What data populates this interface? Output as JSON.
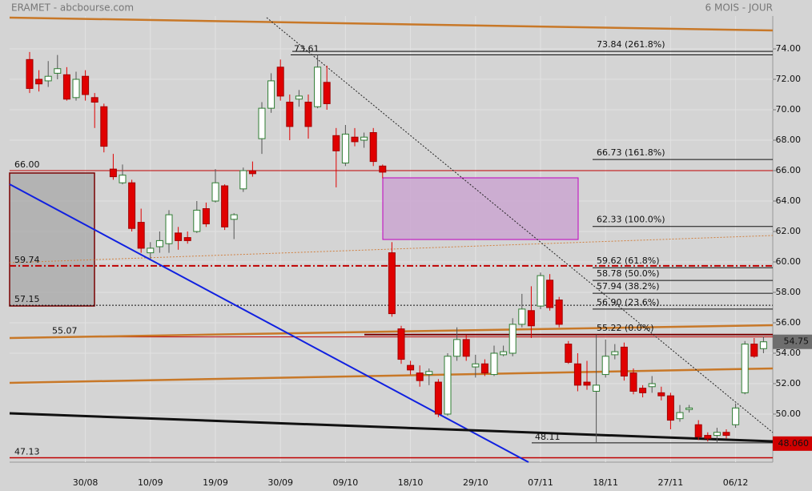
{
  "chart_data": {
    "type": "candlestick",
    "title": "ERAMET - abcbourse.com",
    "subtitle": "6 MOIS - JOUR",
    "categories": [
      null,
      null,
      null,
      null,
      null,
      null,
      "30/08",
      null,
      null,
      null,
      null,
      null,
      null,
      "10/09",
      null,
      null,
      null,
      null,
      null,
      null,
      "19/09",
      null,
      null,
      null,
      null,
      null,
      null,
      "30/09",
      null,
      null,
      null,
      null,
      null,
      null,
      "09/10",
      null,
      null,
      null,
      null,
      null,
      null,
      "18/10",
      null,
      null,
      null,
      null,
      null,
      null,
      "29/10",
      null,
      null,
      null,
      null,
      null,
      null,
      "07/11",
      null,
      null,
      null,
      null,
      null,
      null,
      "18/11",
      null,
      null,
      null,
      null,
      null,
      null,
      "27/11",
      null,
      null,
      null,
      null,
      null,
      null,
      "06/12",
      null,
      null,
      null
    ],
    "open": [
      73.3,
      72.0,
      71.9,
      72.4,
      72.3,
      70.8,
      72.2,
      70.8,
      70.2,
      66.1,
      65.2,
      65.2,
      62.6,
      60.6,
      61.0,
      61.2,
      61.9,
      61.6,
      62.0,
      63.5,
      64.0,
      65.0,
      62.8,
      64.8,
      66.0,
      68.1,
      70.1,
      72.8,
      70.5,
      70.7,
      70.5,
      70.2,
      71.8,
      68.3,
      66.5,
      68.2,
      68.0,
      68.5,
      66.3,
      60.6,
      55.6,
      53.2,
      52.7,
      52.6,
      52.1,
      50.0,
      53.8,
      54.9,
      53.1,
      53.3,
      52.6,
      53.9,
      54.0,
      55.9,
      56.8,
      57.1,
      58.8,
      57.5,
      54.6,
      53.3,
      52.1,
      51.5,
      52.6,
      53.9,
      54.4,
      52.7,
      51.7,
      51.8,
      51.4,
      51.2,
      49.7,
      50.3,
      49.3,
      48.6,
      48.6,
      48.8,
      49.3,
      51.4,
      54.6,
      54.3
    ],
    "high": [
      73.8,
      72.6,
      73.2,
      73.6,
      72.8,
      72.5,
      72.6,
      71.1,
      70.4,
      67.1,
      66.4,
      65.4,
      63.5,
      61.3,
      62.0,
      63.4,
      62.3,
      62.0,
      64.0,
      63.9,
      66.1,
      65.1,
      63.2,
      66.2,
      66.6,
      70.5,
      72.4,
      73.3,
      71.0,
      71.3,
      71.0,
      73.6,
      72.9,
      68.8,
      69.0,
      68.8,
      68.5,
      68.8,
      66.4,
      61.3,
      55.8,
      53.5,
      53.2,
      53.0,
      52.3,
      54.0,
      55.7,
      55.2,
      53.9,
      53.6,
      54.5,
      54.5,
      56.3,
      57.9,
      58.4,
      59.3,
      59.2,
      57.7,
      54.8,
      54.0,
      53.5,
      55.2,
      54.9,
      54.6,
      54.7,
      53.0,
      51.9,
      52.5,
      51.8,
      51.4,
      50.6,
      50.6,
      49.6,
      48.8,
      49.1,
      49.0,
      50.7,
      54.8,
      55.0,
      55.1
    ],
    "low": [
      71.1,
      71.2,
      71.5,
      72.0,
      70.6,
      70.6,
      70.6,
      68.8,
      67.2,
      65.4,
      65.1,
      62.0,
      60.6,
      60.2,
      60.6,
      60.6,
      60.8,
      61.2,
      61.9,
      62.3,
      63.9,
      62.1,
      61.5,
      64.6,
      65.6,
      67.1,
      69.8,
      70.6,
      68.0,
      70.2,
      68.1,
      70.1,
      70.0,
      64.9,
      66.3,
      67.6,
      67.5,
      66.3,
      65.5,
      56.4,
      53.3,
      52.6,
      51.8,
      51.9,
      49.8,
      49.9,
      53.5,
      53.5,
      52.4,
      52.5,
      52.5,
      53.8,
      53.8,
      55.7,
      55.0,
      56.9,
      56.8,
      55.7,
      53.3,
      51.5,
      51.6,
      48.1,
      52.4,
      53.6,
      52.2,
      51.3,
      51.1,
      51.4,
      50.9,
      49.0,
      49.5,
      50.1,
      48.3,
      48.2,
      48.1,
      48.4,
      49.1,
      51.3,
      53.7,
      54.0
    ],
    "close": [
      71.4,
      71.7,
      72.2,
      72.7,
      70.7,
      72.0,
      71.0,
      70.5,
      67.6,
      65.6,
      65.7,
      62.2,
      60.9,
      60.9,
      61.4,
      63.1,
      61.4,
      61.4,
      63.4,
      62.5,
      65.2,
      62.3,
      63.1,
      66.0,
      65.8,
      70.1,
      71.9,
      70.9,
      68.9,
      70.9,
      68.9,
      72.8,
      70.4,
      67.3,
      68.4,
      67.9,
      68.2,
      66.6,
      65.9,
      56.6,
      53.6,
      52.9,
      52.2,
      52.8,
      50.0,
      53.8,
      54.9,
      53.8,
      53.3,
      52.7,
      54.0,
      54.1,
      55.9,
      56.9,
      55.8,
      59.1,
      57.0,
      55.9,
      53.4,
      51.9,
      51.9,
      51.9,
      53.8,
      54.1,
      52.5,
      51.5,
      51.4,
      52.0,
      51.2,
      49.6,
      50.1,
      50.4,
      48.5,
      48.4,
      48.8,
      48.6,
      50.4,
      54.6,
      53.8,
      54.75
    ],
    "up_color": "#2e7d32",
    "down_color": "#e00000",
    "ylim": [
      46.84,
      76.16
    ],
    "yticks": [
      {
        "value": 50,
        "label": "50.00"
      },
      {
        "value": 52,
        "label": "52.00"
      },
      {
        "value": 54,
        "label": "54.00"
      },
      {
        "value": 56,
        "label": "56.00"
      },
      {
        "value": 58,
        "label": "58.00"
      },
      {
        "value": 60,
        "label": "60.00"
      },
      {
        "value": 62,
        "label": "62.00"
      },
      {
        "value": 64,
        "label": "64.00"
      },
      {
        "value": 66,
        "label": "66.00"
      },
      {
        "value": 68,
        "label": "68.00"
      },
      {
        "value": 70,
        "label": "70.00"
      },
      {
        "value": 72,
        "label": "72.00"
      },
      {
        "value": 74,
        "label": "74.00"
      }
    ],
    "grid": true,
    "levels": [
      {
        "value": 66.0,
        "label": "66.00",
        "color": "#c00000"
      },
      {
        "value": 59.74,
        "label": "59.74",
        "color": "#c00000"
      },
      {
        "value": 57.15,
        "label": "57.15",
        "color": "#111111"
      },
      {
        "value": 55.07,
        "label": "55.07",
        "color": "#c00000"
      },
      {
        "value": 47.13,
        "label": "47.13",
        "color": "#c00000"
      }
    ],
    "fib_levels": [
      {
        "value": 73.84,
        "label": "73.84  (261.8%)"
      },
      {
        "value": 66.73,
        "label": "66.73  (161.8%)"
      },
      {
        "value": 62.33,
        "label": "62.33  (100.0%)"
      },
      {
        "value": 59.62,
        "label": "59.62  (61.8%)"
      },
      {
        "value": 58.78,
        "label": "58.78  (50.0%)"
      },
      {
        "value": 57.94,
        "label": "57.94  (38.2%)"
      },
      {
        "value": 56.9,
        "label": "56.90  (23.6%)"
      },
      {
        "value": 55.22,
        "label": "55.22  (0.0%)"
      }
    ],
    "markers": [
      {
        "value": 73.61,
        "label": "73.61"
      },
      {
        "value": 48.11,
        "label": "48.11"
      }
    ],
    "price_tags": [
      {
        "value": 54.75,
        "label": "54.75",
        "color": "#6e6e6e"
      },
      {
        "value": 48.06,
        "label": "48.060",
        "color": "#d00000"
      }
    ]
  }
}
